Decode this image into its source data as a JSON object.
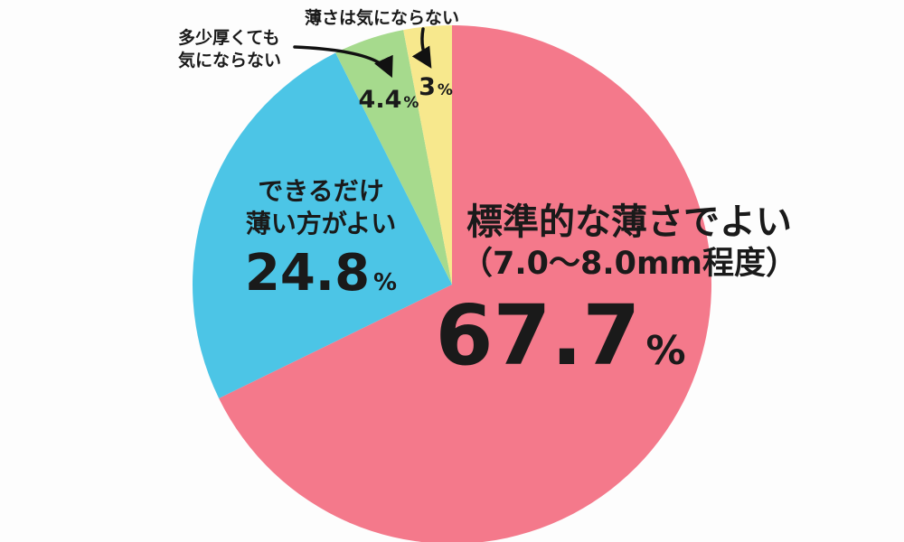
{
  "background_color": "#FDFDFD",
  "text_color": "#1A1A1A",
  "arrow_color": "#111111",
  "chart_data": {
    "type": "pie",
    "title": "",
    "unit": "%",
    "start_angle_deg": 0,
    "direction": "clockwise",
    "legend": "none",
    "segments": [
      {
        "label": "標準的な薄さでよい（7.0～8.0mm程度）",
        "label_line1": "標準的な薄さでよい",
        "label_line2": "（7.0～8.0mm程度）",
        "value": 67.7,
        "value_text": "67.7",
        "unit": "%",
        "color": "#F4798B",
        "label_position": "inside"
      },
      {
        "label": "できるだけ薄い方がよい",
        "label_line1": "できるだけ",
        "label_line2": "薄い方がよい",
        "value": 24.8,
        "value_text": "24.8",
        "unit": "%",
        "color": "#4CC5E6",
        "label_position": "inside"
      },
      {
        "label": "多少厚くても気にならない",
        "label_line1": "多少厚くても",
        "label_line2": "気にならない",
        "value": 4.4,
        "value_text": "4.4",
        "unit": "%",
        "color": "#A6DA8D",
        "label_position": "callout-arrow"
      },
      {
        "label": "薄さは気にならない",
        "label_line1": "薄さは気にならない",
        "value": 3,
        "value_text": "3",
        "unit": "%",
        "color": "#F7E88D",
        "label_position": "callout-arrow"
      }
    ]
  }
}
